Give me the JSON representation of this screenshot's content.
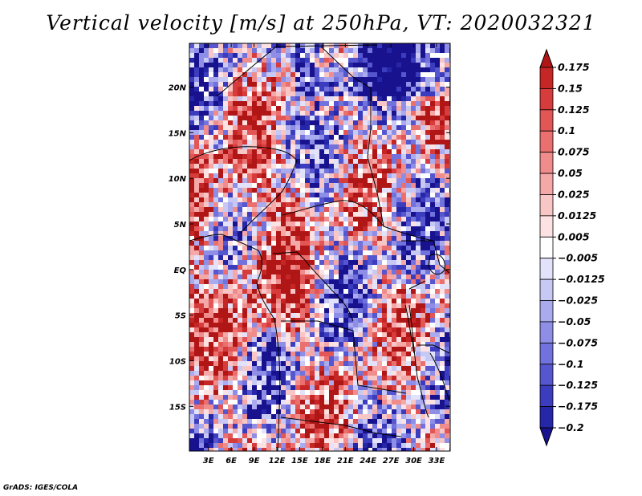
{
  "title": "Vertical velocity [m/s] at 250hPa, VT: 2020032321",
  "credit": "GrADS: IGES/COLA",
  "map": {
    "lat_labels": [
      "20N",
      "15N",
      "10N",
      "5N",
      "EQ",
      "5S",
      "10S",
      "15S"
    ],
    "lat_values": [
      20,
      15,
      10,
      5,
      0,
      -5,
      -10,
      -15
    ],
    "lon_labels": [
      "3E",
      "6E",
      "9E",
      "12E",
      "15E",
      "18E",
      "21E",
      "24E",
      "27E",
      "30E",
      "33E"
    ],
    "lon_values": [
      3,
      6,
      9,
      12,
      15,
      18,
      21,
      24,
      27,
      30,
      33
    ],
    "lon_range": [
      0.5,
      34.8
    ],
    "lat_range": [
      -19.9,
      24.8
    ],
    "field": "vertical velocity",
    "level": "250hPa"
  },
  "colorbar": {
    "labels": [
      "0.175",
      "0.15",
      "0.125",
      "0.1",
      "0.075",
      "0.05",
      "0.025",
      "0.0125",
      "0.005",
      "-0.005",
      "-0.0125",
      "-0.025",
      "-0.05",
      "-0.075",
      "-0.1",
      "-0.125",
      "-0.175",
      "-0.2"
    ],
    "colors": [
      "#b01616",
      "#c62626",
      "#d63c3c",
      "#e25656",
      "#ea7070",
      "#f08c8c",
      "#f5a8a8",
      "#f9c6c6",
      "#fce2e2",
      "#ffffff",
      "#e2e2fb",
      "#c8c8f5",
      "#aaaaee",
      "#8e8ee6",
      "#7272dc",
      "#5656cf",
      "#3c3cbf",
      "#2626a8",
      "#18128e"
    ]
  }
}
